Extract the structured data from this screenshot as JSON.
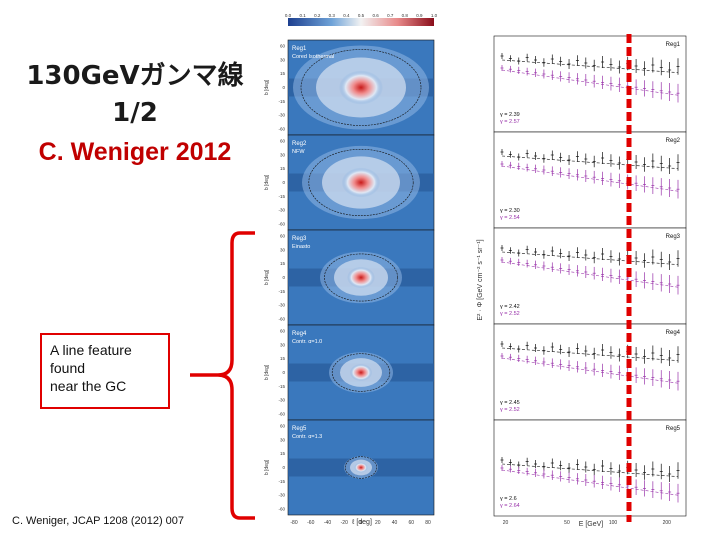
{
  "slide": {
    "title_line1": "130GeVガンマ線",
    "title_line2": "1/2",
    "author_year": "C. Weniger 2012",
    "callout_lines": [
      "A line feature",
      "found",
      "near the GC"
    ],
    "citation": "C. Weniger, JCAP 1208 (2012) 007"
  },
  "maps": {
    "colorbar_ticks": [
      "0.0",
      "0.1",
      "0.2",
      "0.3",
      "0.4",
      "0.5",
      "0.6",
      "0.7",
      "0.8",
      "0.9",
      "1.0"
    ],
    "panels": [
      {
        "region": "Reg1",
        "profile": "Cored Isothermal"
      },
      {
        "region": "Reg2",
        "profile": "NFW"
      },
      {
        "region": "Reg3",
        "profile": "Einasto"
      },
      {
        "region": "Reg4",
        "profile": "Contr. α=1.0"
      },
      {
        "region": "Reg5",
        "profile": "Contr. α=1.3"
      }
    ],
    "y_axis_label": "b [deg]",
    "x_axis_label": "ℓ [deg]",
    "x_ticks": [
      "-80",
      "-60",
      "-40",
      "-20",
      "0",
      "20",
      "40",
      "60",
      "80"
    ],
    "y_ticks": [
      "60",
      "30",
      "15",
      "0",
      "-15",
      "-30",
      "-60"
    ]
  },
  "spectra": {
    "y_axis_label": "E² · Φ [GeV cm⁻² s⁻¹ sr⁻¹]",
    "x_axis_label": "E [GeV]",
    "x_ticks": [
      "20",
      "50",
      "100",
      "200"
    ],
    "panels": [
      {
        "region": "Reg1",
        "gammas": [
          "γ = 2.39",
          "γ = 2.57"
        ]
      },
      {
        "region": "Reg2",
        "gammas": [
          "γ = 2.30",
          "γ = 2.54"
        ]
      },
      {
        "region": "Reg3",
        "gammas": [
          "γ = 2.42",
          "γ = 2.52"
        ]
      },
      {
        "region": "Reg4",
        "gammas": [
          "γ = 2.45",
          "γ = 2.52"
        ]
      },
      {
        "region": "Reg5",
        "gammas": [
          "γ = 2.6",
          "γ = 2.64"
        ]
      }
    ]
  },
  "colors": {
    "accent_red": "#e00000",
    "map_blue": "#2f6fb3",
    "black_series": "#111111",
    "purple_series": "#9933aa"
  }
}
